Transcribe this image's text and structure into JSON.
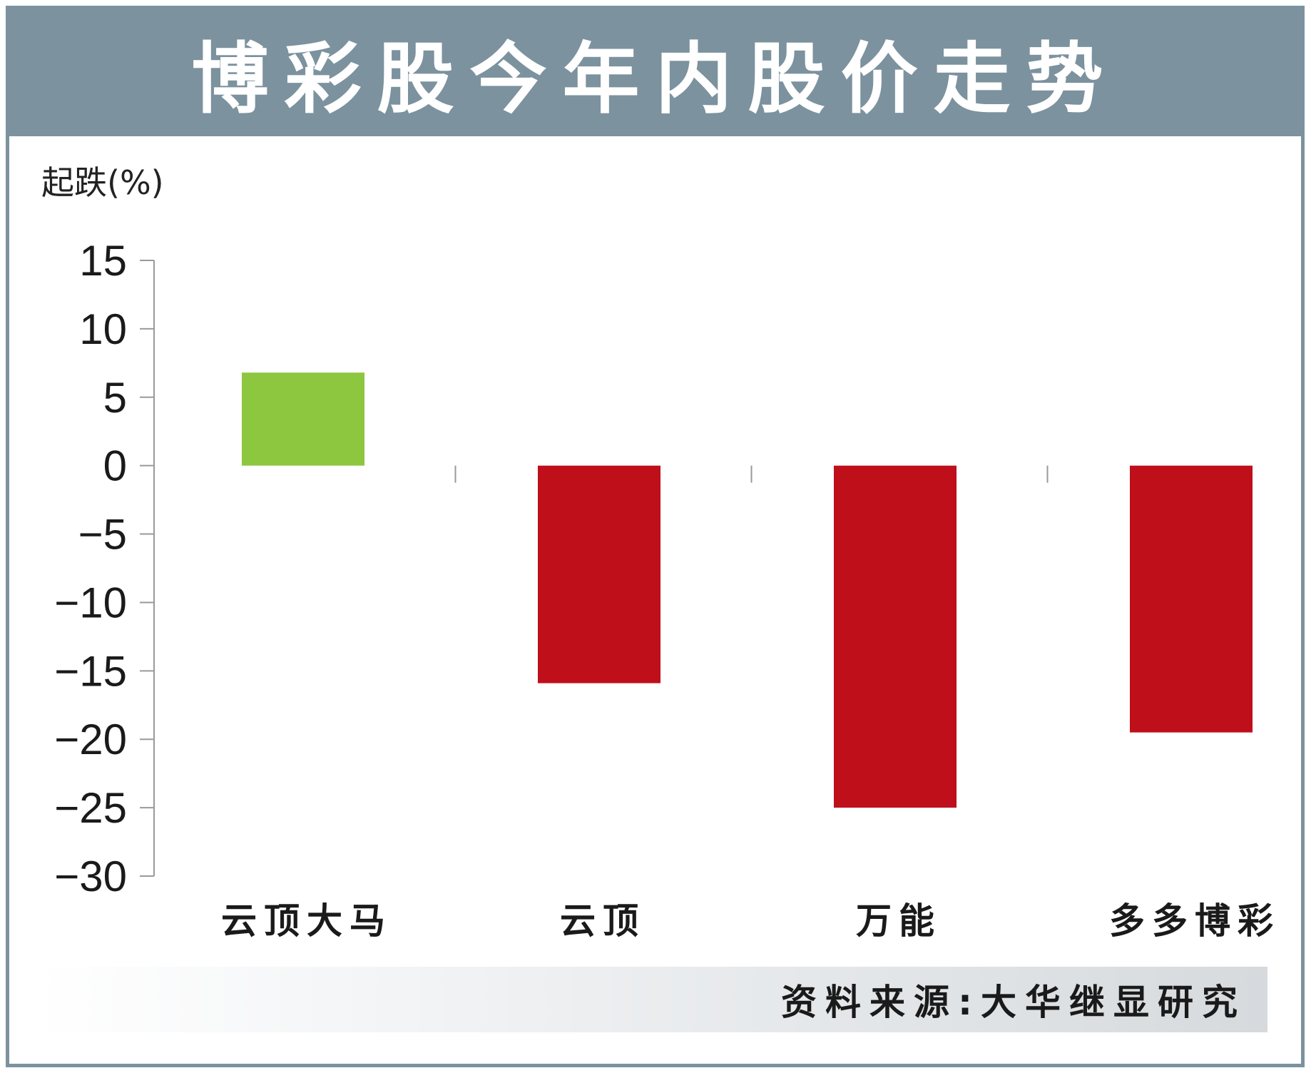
{
  "chart_data": {
    "type": "bar",
    "title": "博彩股今年内股价走势",
    "ylabel": "起跌(%)",
    "xlabel": "",
    "categories": [
      "云顶大马",
      "云顶",
      "万能",
      "多多博彩"
    ],
    "values": [
      6.8,
      -15.9,
      -25.0,
      -19.5
    ],
    "bar_colors": [
      "#8dc63f",
      "#be0f1b",
      "#be0f1b",
      "#be0f1b"
    ],
    "ylim": [
      -30,
      15
    ],
    "yticks": [
      15,
      10,
      5,
      0,
      -5,
      -10,
      -15,
      -20,
      -25,
      -30
    ],
    "ytick_labels": [
      "15",
      "10",
      "5",
      "0",
      "−5",
      "−10",
      "−15",
      "−20",
      "−25",
      "−30"
    ],
    "grid": false,
    "legend": "none",
    "source": "资料来源:大华继显研究"
  },
  "colors": {
    "title_bar": "#7c929e",
    "positive": "#8dc63f",
    "negative": "#be0f1b",
    "axis": "#9a9a9a"
  }
}
